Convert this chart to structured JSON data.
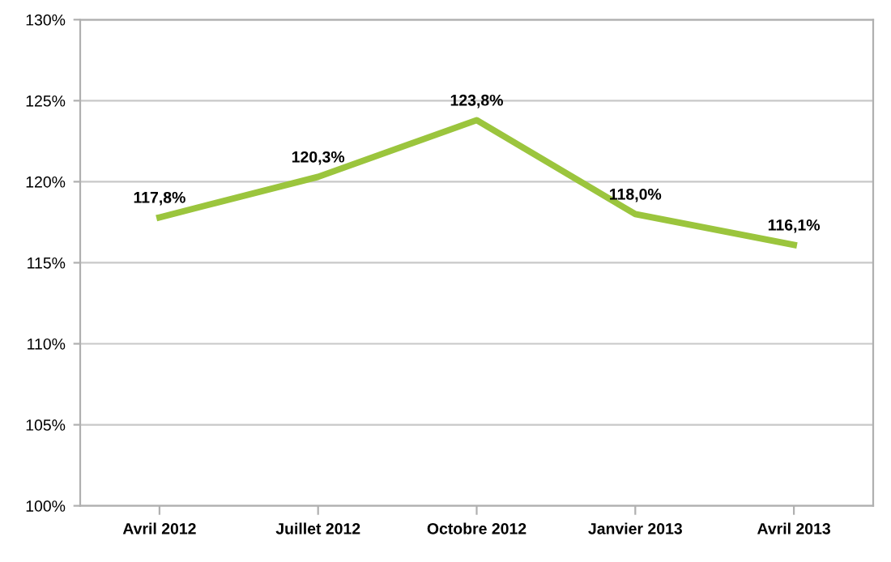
{
  "chart_data": {
    "type": "line",
    "categories": [
      "Avril 2012",
      "Juillet 2012",
      "Octobre 2012",
      "Janvier 2013",
      "Avril 2013"
    ],
    "series": [
      {
        "color": "#9bc53d",
        "values": [
          117.8,
          120.3,
          123.8,
          118.0,
          116.1
        ],
        "value_labels": [
          "117,8%",
          "120,3%",
          "123,8%",
          "118,0%",
          "116,1%"
        ]
      }
    ],
    "ylim": [
      100,
      130
    ],
    "yticks": [
      {
        "value": 100,
        "label": "100%"
      },
      {
        "value": 105,
        "label": "105%"
      },
      {
        "value": 110,
        "label": "110%"
      },
      {
        "value": 115,
        "label": "115%"
      },
      {
        "value": 120,
        "label": "120%"
      },
      {
        "value": 125,
        "label": "125%"
      },
      {
        "value": 130,
        "label": "130%"
      }
    ],
    "grid": "y",
    "marker": "none",
    "line_style": "solid"
  }
}
